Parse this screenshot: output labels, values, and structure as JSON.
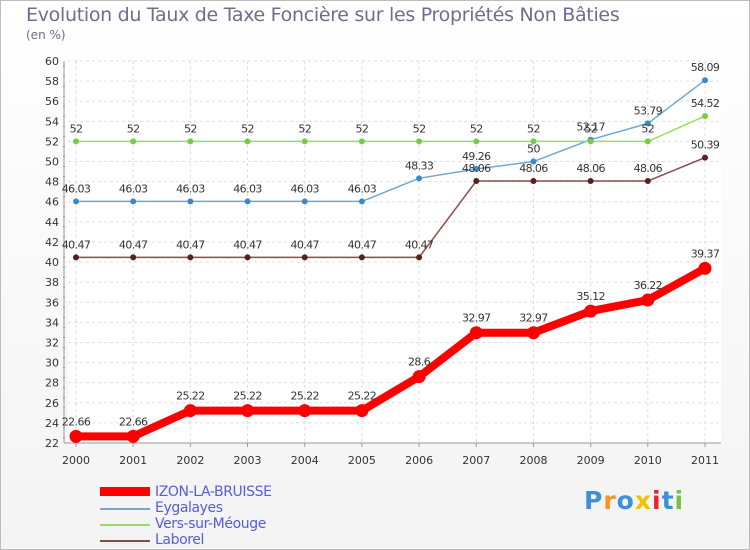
{
  "chart_data": {
    "type": "line",
    "title": "Evolution du Taux de Taxe Foncière sur les Propriétés Non Bâties",
    "ylabel": "(en %)",
    "xlabel": "",
    "ylim": [
      22,
      60
    ],
    "yticks": [
      22,
      24,
      26,
      28,
      30,
      32,
      34,
      36,
      38,
      40,
      42,
      44,
      46,
      48,
      50,
      52,
      54,
      56,
      58,
      60
    ],
    "ytick_labels": [
      "22",
      "24",
      "26",
      "28",
      "30",
      "32",
      "34",
      "36",
      "38",
      "40",
      "42",
      "44",
      "46",
      "48",
      "50",
      "52",
      "54",
      "56",
      "58",
      "60"
    ],
    "categories": [
      "2000",
      "2001",
      "2002",
      "2003",
      "2004",
      "2005",
      "2006",
      "2007",
      "2008",
      "2009",
      "2010",
      "2011"
    ],
    "grid": true,
    "series": [
      {
        "name": "IZON-LA-BRUISSE",
        "color": "#ff0000",
        "values": [
          22.66,
          22.66,
          25.22,
          25.22,
          25.22,
          25.22,
          28.6,
          32.97,
          32.97,
          35.12,
          36.22,
          39.37
        ],
        "labels": [
          "22.66",
          "22.66",
          "25.22",
          "25.22",
          "25.22",
          "25.22",
          "28.6",
          "32.97",
          "32.97",
          "35.12",
          "36.22",
          "39.37"
        ]
      },
      {
        "name": "Eygalayes",
        "color": "#6fa7d6",
        "marker_color": "#3a88c8",
        "values": [
          46.03,
          46.03,
          46.03,
          46.03,
          46.03,
          46.03,
          48.33,
          49.26,
          50,
          52.17,
          53.79,
          58.09
        ],
        "labels": [
          "46.03",
          "46.03",
          "46.03",
          "46.03",
          "46.03",
          "46.03",
          "48.33",
          "49.26",
          "50",
          "52.17",
          "53.79",
          "58.09"
        ]
      },
      {
        "name": "Vers-sur-Méouge",
        "color": "#99dd66",
        "marker_color": "#77cc44",
        "values": [
          52,
          52,
          52,
          52,
          52,
          52,
          52,
          52,
          52,
          52,
          52,
          54.52
        ],
        "labels": [
          "52",
          "52",
          "52",
          "52",
          "52",
          "52",
          "52",
          "52",
          "52",
          "52",
          "52",
          "54.52"
        ]
      },
      {
        "name": "Laborel",
        "color": "#8b4a4a",
        "marker_color": "#5a1e1e",
        "values": [
          40.47,
          40.47,
          40.47,
          40.47,
          40.47,
          40.47,
          40.47,
          48.06,
          48.06,
          48.06,
          48.06,
          50.39
        ],
        "labels": [
          "40.47",
          "40.47",
          "40.47",
          "40.47",
          "40.47",
          "40.47",
          "40.47",
          "48.06",
          "48.06",
          "48.06",
          "48.06",
          "50.39"
        ]
      }
    ]
  },
  "brand": {
    "letters": [
      "P",
      "r",
      "o",
      "x",
      "i",
      "t",
      "i"
    ],
    "colors": [
      "#3d8fd6",
      "#f7931e",
      "#3d8fd6",
      "#f2c100",
      "#e8242c",
      "#3d8fd6",
      "#7ac143"
    ]
  }
}
